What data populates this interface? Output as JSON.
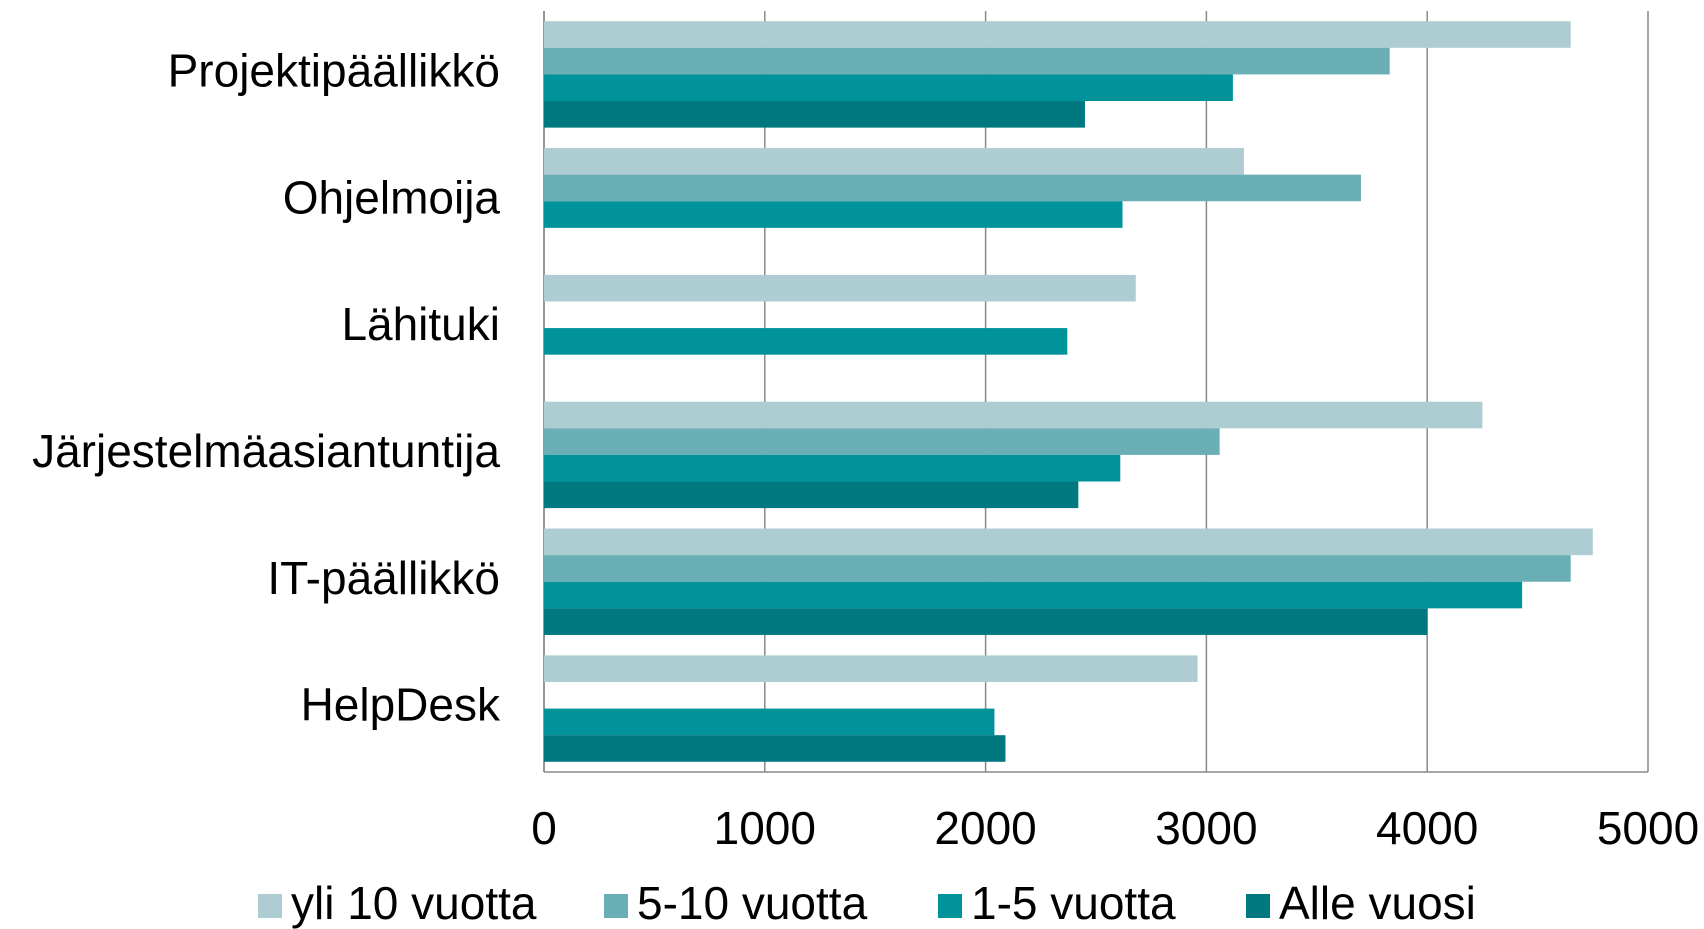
{
  "chart_data": {
    "type": "barh",
    "categories": [
      "Projektipäällikkö",
      "Ohjelmoija",
      "Lähituki",
      "Järjestelmäasiantuntija",
      "IT-päällikkö",
      "HelpDesk"
    ],
    "series": [
      {
        "name": "yli 10 vuotta",
        "color": "#aecdd2",
        "values": [
          4650,
          3170,
          2680,
          4250,
          4750,
          2960
        ]
      },
      {
        "name": "5-10 vuotta",
        "color": "#6aaeb6",
        "values": [
          3830,
          3700,
          null,
          3060,
          4650,
          null
        ]
      },
      {
        "name": "1-5 vuotta",
        "color": "#00939a",
        "values": [
          3120,
          2620,
          2370,
          2610,
          4430,
          2040
        ]
      },
      {
        "name": "Alle vuosi",
        "color": "#007880",
        "values": [
          2450,
          null,
          null,
          2420,
          4000,
          2090
        ]
      }
    ],
    "xlim": [
      0,
      5000
    ],
    "xticks": [
      0,
      1000,
      2000,
      3000,
      4000,
      5000
    ],
    "grid": true,
    "legend": "bottom"
  }
}
